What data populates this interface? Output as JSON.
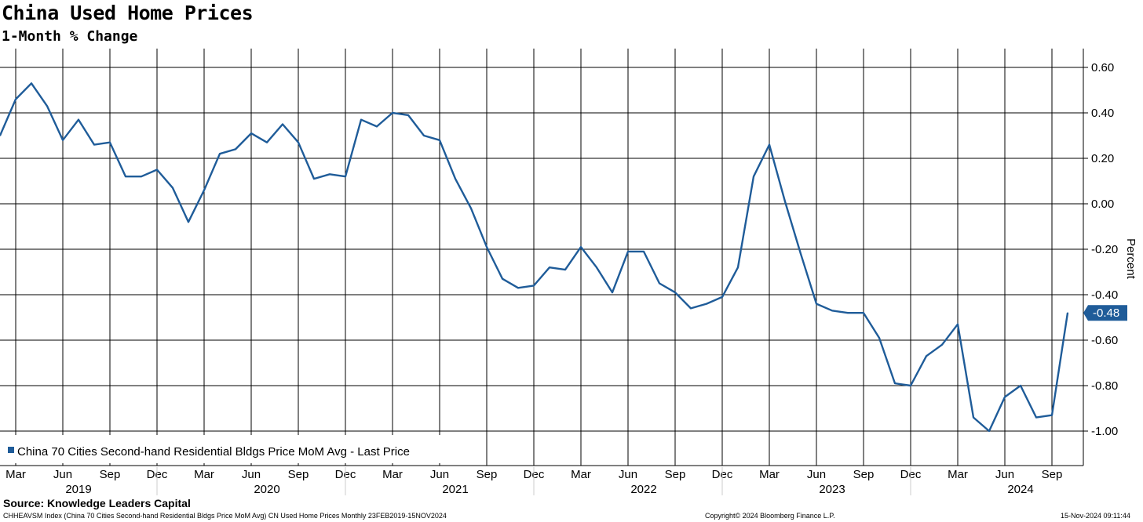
{
  "header": {
    "title": "China Used Home Prices",
    "subtitle": "1-Month % Change"
  },
  "footer": {
    "source": "Source: Knowledge Leaders Capital",
    "index_info": "CHHEAVSM Index (China 70 Cities  Second-hand Residential Bldgs Price MoM Avg) CN Used Home Prices  Monthly 23FEB2019-15NOV2024",
    "copyright": "Copyright© 2024 Bloomberg Finance L.P.",
    "timestamp": "15-Nov-2024 09:11:44"
  },
  "chart_data": {
    "type": "line",
    "title": "China Used Home Prices",
    "subtitle": "1-Month % Change",
    "ylabel": "Percent",
    "ylim": [
      -1.1,
      0.65
    ],
    "y_ticks": [
      "0.60",
      "0.40",
      "0.20",
      "0.00",
      "-0.20",
      "-0.40",
      "-0.60",
      "-0.80",
      "-1.00"
    ],
    "x_month_labels": [
      "Mar",
      "Jun",
      "Sep",
      "Dec",
      "Mar",
      "Jun",
      "Sep",
      "Dec",
      "Mar",
      "Jun",
      "Sep",
      "Dec",
      "Mar",
      "Jun",
      "Sep",
      "Dec",
      "Mar",
      "Jun",
      "Sep",
      "Dec",
      "Mar",
      "Jun",
      "Sep"
    ],
    "x_year_labels": [
      "2019",
      "2020",
      "2021",
      "2022",
      "2023",
      "2024"
    ],
    "legend": {
      "placement": "bottom-left",
      "entries": [
        "China 70 Cities Second-hand Residential Bldgs Price MoM Avg - Last Price"
      ]
    },
    "last_value_label": "-0.48",
    "line_color": "#1f5c99",
    "series": [
      {
        "name": "China 70 Cities Second-hand Residential Bldgs Price MoM Avg - Last Price",
        "x": [
          "2019-02",
          "2019-03",
          "2019-04",
          "2019-05",
          "2019-06",
          "2019-07",
          "2019-08",
          "2019-09",
          "2019-10",
          "2019-11",
          "2019-12",
          "2020-01",
          "2020-02",
          "2020-03",
          "2020-04",
          "2020-05",
          "2020-06",
          "2020-07",
          "2020-08",
          "2020-09",
          "2020-10",
          "2020-11",
          "2020-12",
          "2021-01",
          "2021-02",
          "2021-03",
          "2021-04",
          "2021-05",
          "2021-06",
          "2021-07",
          "2021-08",
          "2021-09",
          "2021-10",
          "2021-11",
          "2021-12",
          "2022-01",
          "2022-02",
          "2022-03",
          "2022-04",
          "2022-05",
          "2022-06",
          "2022-07",
          "2022-08",
          "2022-09",
          "2022-10",
          "2022-11",
          "2022-12",
          "2023-01",
          "2023-02",
          "2023-03",
          "2023-04",
          "2023-05",
          "2023-06",
          "2023-07",
          "2023-08",
          "2023-09",
          "2023-10",
          "2023-11",
          "2023-12",
          "2024-01",
          "2024-02",
          "2024-03",
          "2024-04",
          "2024-05",
          "2024-06",
          "2024-07",
          "2024-08",
          "2024-09",
          "2024-10"
        ],
        "values": [
          0.3,
          0.46,
          0.53,
          0.43,
          0.28,
          0.37,
          0.26,
          0.27,
          0.12,
          0.12,
          0.15,
          0.07,
          -0.08,
          0.06,
          0.22,
          0.24,
          0.31,
          0.27,
          0.35,
          0.27,
          0.11,
          0.13,
          0.12,
          0.37,
          0.34,
          0.4,
          0.39,
          0.3,
          0.28,
          0.11,
          -0.02,
          -0.19,
          -0.33,
          -0.37,
          -0.36,
          -0.28,
          -0.29,
          -0.19,
          -0.28,
          -0.39,
          -0.21,
          -0.21,
          -0.35,
          -0.39,
          -0.46,
          -0.44,
          -0.41,
          -0.28,
          0.12,
          0.26,
          0.01,
          -0.22,
          -0.44,
          -0.47,
          -0.48,
          -0.48,
          -0.59,
          -0.79,
          -0.8,
          -0.67,
          -0.62,
          -0.53,
          -0.94,
          -1.0,
          -0.85,
          -0.8,
          -0.94,
          -0.93,
          -0.48
        ]
      }
    ]
  }
}
